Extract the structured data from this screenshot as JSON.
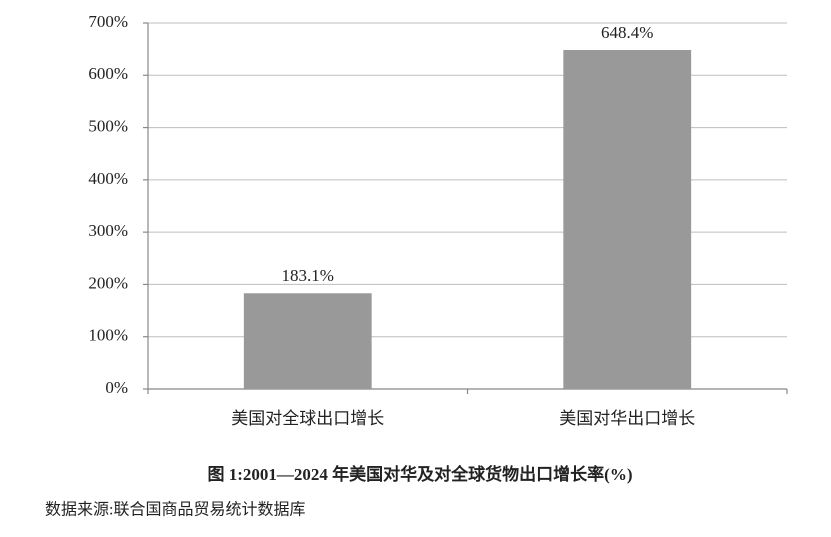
{
  "chart_data": {
    "type": "bar",
    "title": "图 1:2001—2024 年美国对华及对全球货物出口增长率(%)",
    "source": "数据来源:联合国商品贸易统计数据库",
    "categories": [
      "美国对全球出口增长",
      "美国对华出口增长"
    ],
    "values": [
      183.1,
      648.4
    ],
    "value_labels": [
      "183.1%",
      "648.4%"
    ],
    "color": "#999999",
    "ylim": [
      0,
      700
    ],
    "yticks": [
      {
        "value": 0,
        "label": "0%"
      },
      {
        "value": 100,
        "label": "100%"
      },
      {
        "value": 200,
        "label": "200%"
      },
      {
        "value": 300,
        "label": "300%"
      },
      {
        "value": 400,
        "label": "400%"
      },
      {
        "value": 500,
        "label": "500%"
      },
      {
        "value": 600,
        "label": "600%"
      },
      {
        "value": 700,
        "label": "700%"
      }
    ],
    "grid": true
  }
}
